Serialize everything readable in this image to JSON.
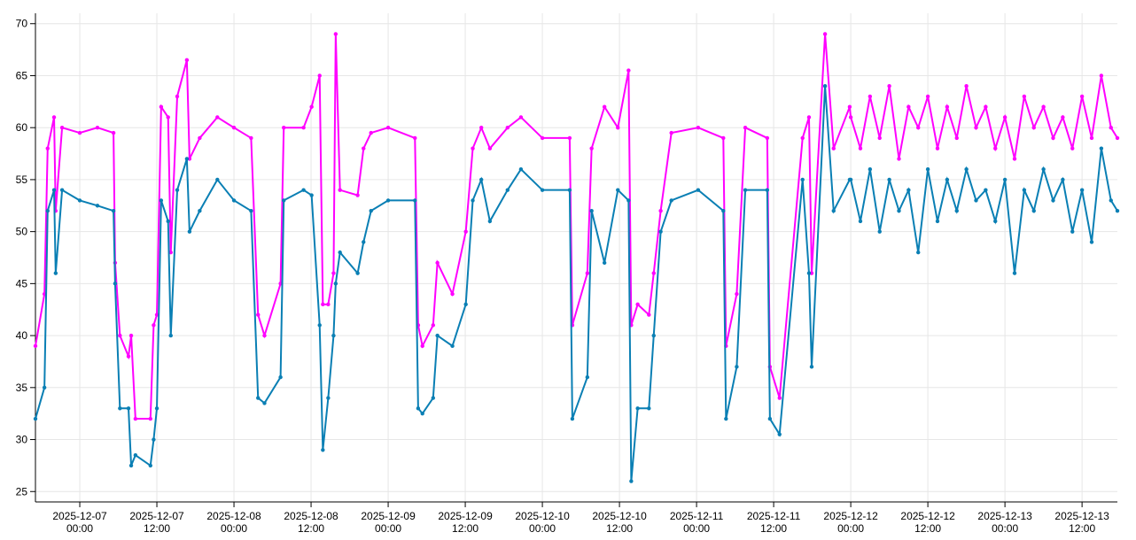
{
  "chart_data": {
    "type": "line",
    "x": [
      "2025-12-06 17:06",
      "2025-12-06 18:30",
      "2025-12-06 19:00",
      "2025-12-06 20:00",
      "2025-12-06 20:15",
      "2025-12-06 21:15",
      "2025-12-07 00:00",
      "2025-12-07 02:45",
      "2025-12-07 05:15",
      "2025-12-07 05:30",
      "2025-12-07 06:15",
      "2025-12-07 07:35",
      "2025-12-07 08:00",
      "2025-12-07 08:40",
      "2025-12-07 11:00",
      "2025-12-07 11:30",
      "2025-12-07 12:00",
      "2025-12-07 12:40",
      "2025-12-07 13:45",
      "2025-12-07 14:10",
      "2025-12-07 15:10",
      "2025-12-07 16:40",
      "2025-12-07 17:05",
      "2025-12-07 18:40",
      "2025-12-07 21:25",
      "2025-12-08 00:00",
      "2025-12-08 02:40",
      "2025-12-08 03:45",
      "2025-12-08 04:45",
      "2025-12-08 07:15",
      "2025-12-08 07:45",
      "2025-12-08 10:50",
      "2025-12-08 12:05",
      "2025-12-08 13:20",
      "2025-12-08 13:50",
      "2025-12-08 14:40",
      "2025-12-08 15:30",
      "2025-12-08 15:50",
      "2025-12-08 16:30",
      "2025-12-08 19:15",
      "2025-12-08 20:10",
      "2025-12-08 21:20",
      "2025-12-09 00:00",
      "2025-12-09 04:10",
      "2025-12-09 04:40",
      "2025-12-09 05:20",
      "2025-12-09 07:00",
      "2025-12-09 07:40",
      "2025-12-09 10:00",
      "2025-12-09 12:05",
      "2025-12-09 13:10",
      "2025-12-09 14:30",
      "2025-12-09 15:50",
      "2025-12-09 18:35",
      "2025-12-09 20:40",
      "2025-12-10 00:00",
      "2025-12-10 04:15",
      "2025-12-10 04:40",
      "2025-12-10 07:00",
      "2025-12-10 07:40",
      "2025-12-10 09:40",
      "2025-12-10 11:45",
      "2025-12-10 13:25",
      "2025-12-10 13:50",
      "2025-12-10 14:50",
      "2025-12-10 16:35",
      "2025-12-10 17:20",
      "2025-12-10 18:25",
      "2025-12-10 20:05",
      "2025-12-11 00:15",
      "2025-12-11 04:10",
      "2025-12-11 04:35",
      "2025-12-11 06:15",
      "2025-12-11 07:35",
      "2025-12-11 11:00",
      "2025-12-11 11:25",
      "2025-12-11 12:55",
      "2025-12-11 16:30",
      "2025-12-11 17:30",
      "2025-12-11 17:55",
      "2025-12-11 20:00",
      "2025-12-11 21:20",
      "2025-12-11 23:50",
      "2025-12-12 00:00",
      "2025-12-12 01:30",
      "2025-12-12 03:00",
      "2025-12-12 04:30",
      "2025-12-12 06:00",
      "2025-12-12 07:30",
      "2025-12-12 09:00",
      "2025-12-12 10:30",
      "2025-12-12 12:00",
      "2025-12-12 13:30",
      "2025-12-12 15:00",
      "2025-12-12 16:30",
      "2025-12-12 18:00",
      "2025-12-12 19:30",
      "2025-12-12 21:00",
      "2025-12-12 22:30",
      "2025-12-13 00:00",
      "2025-12-13 01:30",
      "2025-12-13 03:00",
      "2025-12-13 04:30",
      "2025-12-13 06:00",
      "2025-12-13 07:30",
      "2025-12-13 09:00",
      "2025-12-13 10:30",
      "2025-12-13 12:00",
      "2025-12-13 13:30",
      "2025-12-13 15:00",
      "2025-12-13 16:30",
      "2025-12-13 17:30"
    ],
    "series": [
      {
        "color": "#ff00ff",
        "values": [
          39,
          44,
          58,
          61,
          52,
          60,
          59.5,
          60,
          59.5,
          47,
          40,
          38,
          40,
          32,
          32,
          41,
          42,
          62,
          61,
          48,
          63,
          66.5,
          57,
          59,
          61,
          60,
          59,
          42,
          40,
          45,
          60,
          60,
          62,
          65,
          43,
          43,
          46,
          69,
          54,
          53.5,
          58,
          59.5,
          60,
          59,
          41,
          39,
          41,
          47,
          44,
          50,
          58,
          60,
          58,
          60,
          61,
          59,
          59,
          41,
          46,
          58,
          62,
          60,
          65.5,
          41,
          43,
          42,
          46,
          52,
          59.5,
          60,
          59,
          39,
          44,
          60,
          59,
          37,
          34,
          59,
          61,
          46,
          69,
          58,
          62,
          61,
          58,
          63,
          59,
          64,
          57,
          62,
          60,
          63,
          58,
          62,
          59,
          64,
          60,
          62,
          58,
          61,
          57,
          63,
          60,
          62,
          59,
          61,
          58,
          63,
          59,
          65,
          60,
          59
        ]
      },
      {
        "color": "#0a7fb4",
        "values": [
          32,
          35,
          52,
          54,
          46,
          54,
          53,
          52.5,
          52,
          45,
          33,
          33,
          27.5,
          28.5,
          27.5,
          30,
          33,
          53,
          51,
          40,
          54,
          57,
          50,
          52,
          55,
          53,
          52,
          34,
          33.5,
          36,
          53,
          54,
          53.5,
          41,
          29,
          34,
          40,
          45,
          48,
          46,
          49,
          52,
          53,
          53,
          33,
          32.5,
          34,
          40,
          39,
          43,
          53,
          55,
          51,
          54,
          56,
          54,
          54,
          32,
          36,
          52,
          47,
          54,
          53,
          26,
          33,
          33,
          40,
          50,
          53,
          54,
          52,
          32,
          37,
          54,
          54,
          32,
          30.5,
          55,
          46,
          37,
          64,
          52,
          55,
          55,
          51,
          56,
          50,
          55,
          52,
          54,
          48,
          56,
          51,
          55,
          52,
          56,
          53,
          54,
          51,
          55,
          46,
          54,
          52,
          56,
          53,
          55,
          50,
          54,
          49,
          58,
          53,
          52
        ]
      }
    ],
    "xlim": [
      "2025-12-06 17:06",
      "2025-12-13 17:30"
    ],
    "xticks": [
      "2025-12-07 00:00",
      "2025-12-07 12:00",
      "2025-12-08 00:00",
      "2025-12-08 12:00",
      "2025-12-09 00:00",
      "2025-12-09 12:00",
      "2025-12-10 00:00",
      "2025-12-10 12:00",
      "2025-12-11 00:00",
      "2025-12-11 12:00",
      "2025-12-12 00:00",
      "2025-12-12 12:00",
      "2025-12-13 00:00",
      "2025-12-13 12:00"
    ],
    "ylim": [
      24,
      71
    ],
    "yticks": [
      25,
      30,
      35,
      40,
      45,
      50,
      55,
      60,
      65,
      70
    ],
    "grid": true
  }
}
